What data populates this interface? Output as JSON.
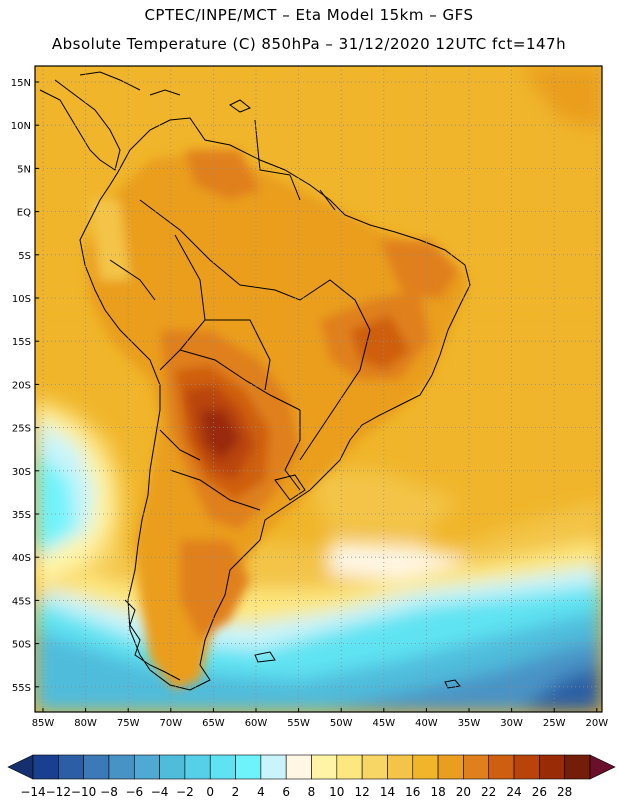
{
  "header": {
    "line1": "CPTEC/INPE/MCT –  Eta Model 15km – GFS",
    "line2": "Absolute Temperature (C) 850hPa – 31/12/2020 12UTC fct=147h"
  },
  "axes": {
    "lat_labels": [
      "15N",
      "10N",
      "5N",
      "EQ",
      "5S",
      "10S",
      "15S",
      "20S",
      "25S",
      "30S",
      "35S",
      "40S",
      "45S",
      "50S",
      "55S"
    ],
    "lon_labels": [
      "85W",
      "80W",
      "75W",
      "70W",
      "65W",
      "60W",
      "55W",
      "50W",
      "45W",
      "40W",
      "35W",
      "30W",
      "25W",
      "20W"
    ]
  },
  "colorbar": {
    "labels": [
      "-14",
      "-12",
      "-10",
      "-8",
      "-6",
      "-4",
      "-2",
      "0",
      "2",
      "4",
      "6",
      "8",
      "10",
      "12",
      "14",
      "16",
      "18",
      "20",
      "22",
      "24",
      "26",
      "28"
    ],
    "colors": [
      "#1b3f8f",
      "#2b5ea4",
      "#3b79b7",
      "#4893c6",
      "#50a9d2",
      "#4fbcdc",
      "#55d0e8",
      "#5fe3f2",
      "#6ff3fb",
      "#c9f4fb",
      "#fff6e4",
      "#fff4a6",
      "#fde77f",
      "#f8d665",
      "#f3c447",
      "#f0b52a",
      "#ea9e1f",
      "#e0801c",
      "#cf5f10",
      "#b9440a",
      "#9a2b07",
      "#741e0a"
    ],
    "left_arrow": "#16306f",
    "right_arrow": "#6a0f2c"
  },
  "legend_palette": {
    "ocean_cold": "#3aa3dc",
    "ocean_mid": "#5fe3f2",
    "land_warm": "#e48f1e",
    "land_hot": "#c3520c",
    "tropic": "#f0b52a"
  }
}
